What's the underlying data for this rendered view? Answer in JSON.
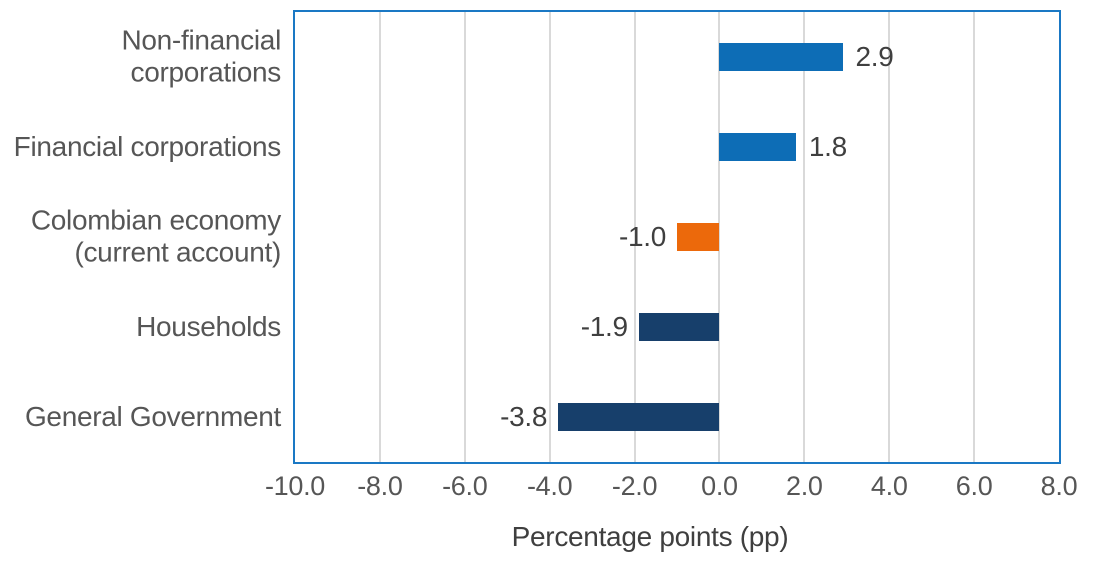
{
  "chart_data": {
    "type": "bar",
    "orientation": "horizontal",
    "categories": [
      "Non-financial corporations",
      "Financial corporations",
      "Colombian economy (current account)",
      "Households",
      "General Government"
    ],
    "category_display": [
      "Non-financial\ncorporations",
      "Financial corporations",
      "Colombian economy\n(current account)",
      "Households",
      "General Government"
    ],
    "values": [
      2.9,
      1.8,
      -1.0,
      -1.9,
      -3.8
    ],
    "value_labels": [
      "2.9",
      "1.8",
      "-1.0",
      "-1.9",
      "-3.8"
    ],
    "bar_colors": [
      "#0d6db6",
      "#0d6db6",
      "#ec690b",
      "#173f6b",
      "#173f6b"
    ],
    "xlabel": "Percentage points (pp)",
    "xlim": [
      -10,
      8
    ],
    "x_ticks": [
      -10,
      -8,
      -6,
      -4,
      -2,
      0,
      2,
      4,
      6,
      8
    ],
    "x_tick_labels": [
      "-10.0",
      "-8.0",
      "-6.0",
      "-4.0",
      "-2.0",
      "0.0",
      "2.0",
      "4.0",
      "6.0",
      "8.0"
    ],
    "grid": true,
    "legend": false
  },
  "colors": {
    "frame_border": "#1a78c4",
    "gridline": "#d9d9d9",
    "bar_blue": "#0d6db6",
    "bar_orange": "#ec690b",
    "bar_navy": "#173f6b",
    "category_text": "#565656",
    "tick_text": "#565656",
    "value_text": "#3f3f3f",
    "background": "#ffffff"
  }
}
